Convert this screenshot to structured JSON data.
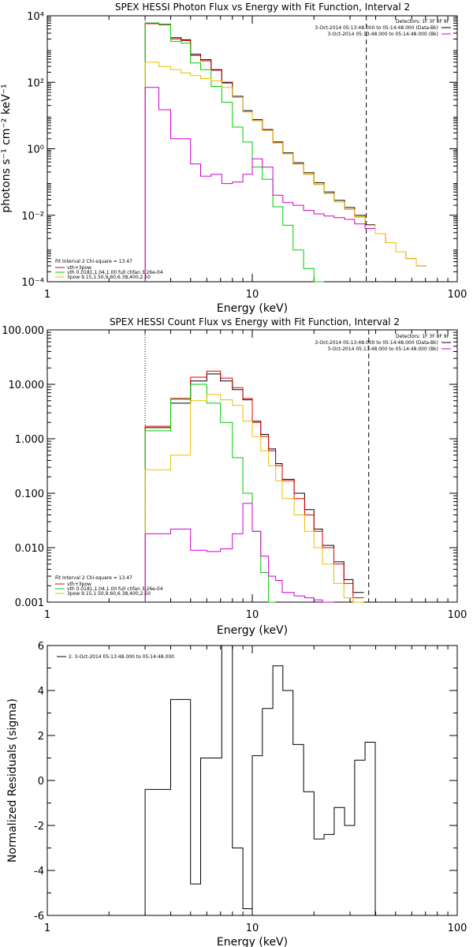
{
  "chart_data": [
    {
      "type": "line",
      "panel": "photon_flux",
      "title": "SPEX HESSI Photon Flux vs Energy with Fit Function, Interval 2",
      "xlabel": "Energy (keV)",
      "ylabel": "photons s⁻¹ cm⁻² keV⁻¹",
      "xscale": "log",
      "yscale": "log",
      "xlim": [
        1,
        100
      ],
      "ylim": [
        0.0001,
        10000
      ],
      "x_ticks": [
        "1",
        "10",
        "100"
      ],
      "y_ticks": [
        "10⁻⁴",
        "10⁻²",
        "10⁰",
        "10²",
        "10⁴"
      ],
      "legend_top_right": [
        "Detectors: 1F 3F 8F 9F",
        "3-Oct-2014 05:13:48.000 to 05:14:48.000 (Data-Bk)",
        "3-Oct-2014 05:13:48.000 to 05:14:48.000 (Bk)"
      ],
      "legend_bottom_left": [
        "Fit Interval 2   Chi-square = 13.47",
        "vth+3pow",
        "vth 0.0181,1.04,1.00  full chfan 3.26e-04",
        "3pow 9.15,1.50,9.60,6.38,400,2.50"
      ],
      "markers": {
        "dotted_x": 3.0,
        "dashed_x": 36.0
      },
      "edges": [
        3.0,
        3.5,
        4.0,
        4.5,
        5.0,
        5.6,
        6.3,
        7.1,
        8.0,
        9.0,
        10.0,
        11.2,
        12.6,
        14.1,
        15.8,
        17.8,
        20.0,
        22.4,
        25.1,
        28.2,
        31.6,
        35.5,
        39.8,
        44.7,
        50.1,
        56.2,
        63.1,
        70.8
      ],
      "series": [
        {
          "name": "Data-Bk",
          "color": "#000000",
          "values": [
            6000,
            5500,
            2200,
            1900,
            700,
            480,
            240,
            100,
            38,
            14,
            7.5,
            3.8,
            1.6,
            0.75,
            0.38,
            0.19,
            0.095,
            0.05,
            0.028,
            0.017,
            0.0099,
            0.0052
          ]
        },
        {
          "name": "vth+3pow",
          "color": "#e00000",
          "values": [
            5800,
            5400,
            2000,
            1800,
            640,
            440,
            230,
            95,
            35,
            13,
            7.0,
            3.6,
            1.5,
            0.7,
            0.35,
            0.17,
            0.085,
            0.045,
            0.025,
            0.015,
            0.009,
            0.005,
            0.0028,
            0.0015,
            0.0008,
            0.0005,
            0.0003
          ]
        },
        {
          "name": "vth",
          "color": "#00cc00",
          "values": [
            6000,
            5300,
            1700,
            1500,
            380,
            240,
            75,
            25,
            4.5,
            1.6,
            0.28,
            0.12,
            0.018,
            0.005,
            0.0009,
            0.00025,
            9e-05
          ]
        },
        {
          "name": "3pow",
          "color": "#e8c000",
          "values": [
            400,
            300,
            240,
            190,
            160,
            130,
            110,
            70,
            35,
            13,
            7.0,
            3.6,
            1.5,
            0.7,
            0.35,
            0.17,
            0.085,
            0.045,
            0.025,
            0.015,
            0.009,
            0.005,
            0.0028,
            0.0015,
            0.0008,
            0.0005,
            0.0003
          ]
        },
        {
          "name": "Bk",
          "color": "#d000d0",
          "values": [
            70,
            15,
            2.0,
            2.0,
            0.35,
            0.15,
            0.17,
            0.09,
            0.1,
            0.17,
            0.5,
            0.28,
            0.04,
            0.024,
            0.02,
            0.014,
            0.011,
            0.0095,
            0.0085,
            0.0075,
            0.0055,
            0.004
          ]
        }
      ]
    },
    {
      "type": "line",
      "panel": "count_flux",
      "title": "SPEX HESSI Count Flux vs Energy with Fit Function, Interval 2",
      "xlabel": "Energy (keV)",
      "ylabel": "",
      "xscale": "log",
      "yscale": "log",
      "xlim": [
        1,
        100
      ],
      "ylim": [
        0.001,
        100
      ],
      "x_ticks": [
        "1",
        "10",
        "100"
      ],
      "y_ticks": [
        "0.001",
        "0.010",
        "0.100",
        "1.000",
        "10.000",
        "100.000"
      ],
      "legend_top_right": [
        "Detectors: 1F 3F 8F 9F",
        "3-Oct-2014 05:13:48.000 to 05:14:48.000 (Data-Bk)",
        "3-Oct-2014 05:13:48.000 to 05:14:48.000 (Bk)"
      ],
      "legend_bottom_left": [
        "Fit Interval 2   Chi-square = 13.47",
        "vth+3pow",
        "vth 0.0181,1.04,1.00  full chfan 3.26e-04",
        "3pow 9.15,1.50,9.60,6.38,400,2.50"
      ],
      "markers": {
        "dotted_x": 3.0,
        "dashed_x": 37.0
      },
      "edges": [
        3.0,
        4.0,
        5.0,
        6.0,
        7.0,
        8.0,
        9.0,
        10.0,
        11.0,
        12.0,
        13.0,
        14.0,
        16.0,
        18.0,
        20.0,
        22.0,
        25.0,
        28.0,
        31.0,
        35.0,
        39.0
      ],
      "series": [
        {
          "name": "Data-Bk",
          "color": "#000000",
          "values": [
            1.6,
            4.5,
            11.5,
            15.5,
            11.5,
            8.0,
            5.2,
            2.1,
            1.2,
            0.65,
            0.35,
            0.18,
            0.1,
            0.05,
            0.022,
            0.011,
            0.0055,
            0.0026,
            0.0015
          ]
        },
        {
          "name": "vth+3pow",
          "color": "#e00000",
          "values": [
            1.7,
            5.5,
            13.5,
            17.5,
            13.0,
            8.7,
            5.5,
            2.0,
            1.1,
            0.6,
            0.32,
            0.17,
            0.08,
            0.04,
            0.02,
            0.01,
            0.005,
            0.0022,
            0.0012
          ]
        },
        {
          "name": "vth",
          "color": "#00cc00",
          "values": [
            1.4,
            5.3,
            10.0,
            4.5,
            2.0,
            0.45,
            0.1,
            0.02,
            0.0035,
            0.0009
          ]
        },
        {
          "name": "3pow",
          "color": "#e8c000",
          "values": [
            0.27,
            0.5,
            5.0,
            6.5,
            5.2,
            4.1,
            2.1,
            1.1,
            0.6,
            0.32,
            0.17,
            0.08,
            0.04,
            0.02,
            0.01,
            0.005,
            0.0022,
            0.0012,
            0.0008
          ]
        },
        {
          "name": "Bk",
          "color": "#d000d0",
          "values": [
            0.018,
            0.022,
            0.009,
            0.0085,
            0.0095,
            0.018,
            0.065,
            0.02,
            0.007,
            0.003,
            0.0025,
            0.0015,
            0.0013,
            0.0012,
            0.0011,
            0.001
          ]
        }
      ]
    },
    {
      "type": "line",
      "panel": "residuals",
      "title": "",
      "xlabel": "Energy (keV)",
      "ylabel": "Normalized Residuals (sigma)",
      "xscale": "log",
      "yscale": "linear",
      "xlim": [
        1,
        100
      ],
      "ylim": [
        -6,
        6
      ],
      "x_ticks": [
        "1",
        "10",
        "100"
      ],
      "y_ticks": [
        "-6",
        "-4",
        "-2",
        "0",
        "2",
        "4",
        "6"
      ],
      "legend": "2.  3-Oct-2014 05:13:48.000 to 05:14:48.000",
      "edges": [
        3.0,
        3.5,
        4.0,
        4.5,
        5.0,
        5.6,
        6.3,
        7.1,
        8.0,
        9.0,
        10.0,
        11.2,
        12.6,
        14.1,
        15.8,
        17.8,
        20.0,
        22.4,
        25.1,
        28.2,
        31.6,
        35.5,
        39.8
      ],
      "values": [
        -0.4,
        -0.4,
        3.6,
        3.6,
        -4.6,
        1.0,
        1.0,
        6.1,
        -3.0,
        -5.7,
        1.1,
        3.2,
        5.1,
        4.0,
        1.6,
        -0.5,
        -2.6,
        -2.4,
        -1.2,
        -2.0,
        0.9,
        1.7
      ]
    }
  ]
}
